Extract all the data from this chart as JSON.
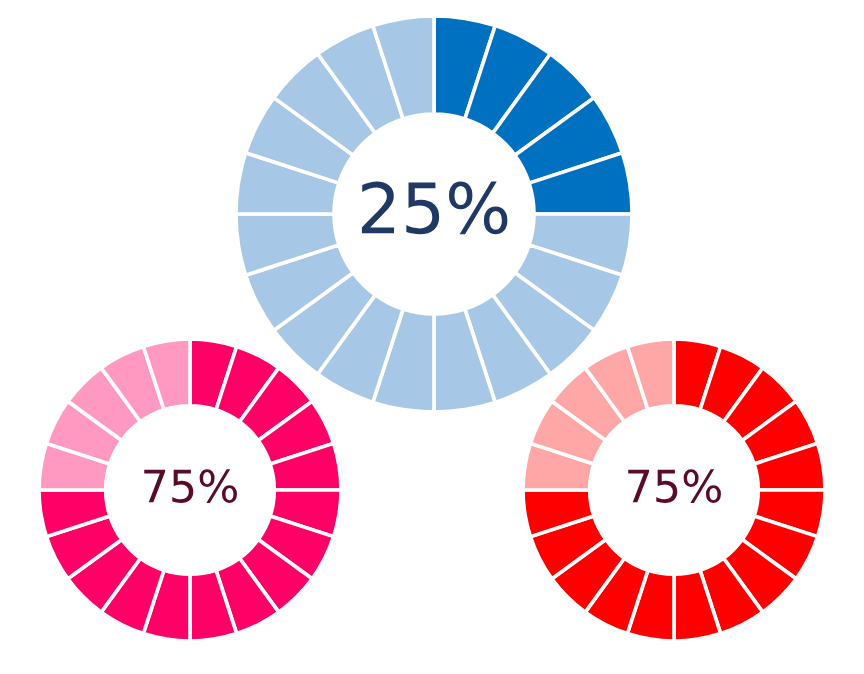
{
  "chart_data": [
    {
      "type": "donut",
      "categories": [
        null,
        null,
        null,
        null,
        null,
        null,
        null,
        null,
        null,
        null,
        null,
        null,
        null,
        null,
        null,
        null,
        null,
        null,
        null,
        null
      ],
      "values": [
        5,
        5,
        5,
        5,
        5,
        5,
        5,
        5,
        5,
        5,
        5,
        5,
        5,
        5,
        5,
        5,
        5,
        5,
        5,
        5
      ],
      "colors": [
        "#0070c0",
        "#0070c0",
        "#0070c0",
        "#0070c0",
        "#0070c0",
        "#a6c8e6",
        "#a6c8e6",
        "#a6c8e6",
        "#a6c8e6",
        "#a6c8e6",
        "#a6c8e6",
        "#a6c8e6",
        "#a6c8e6",
        "#a6c8e6",
        "#a6c8e6",
        "#a6c8e6",
        "#a6c8e6",
        "#a6c8e6",
        "#a6c8e6",
        "#a6c8e6"
      ],
      "annotations": [
        "25%"
      ]
    },
    {
      "type": "donut",
      "categories": [
        null,
        null,
        null,
        null,
        null,
        null,
        null,
        null,
        null,
        null,
        null,
        null,
        null,
        null,
        null,
        null,
        null,
        null,
        null,
        null
      ],
      "values": [
        5,
        5,
        5,
        5,
        5,
        5,
        5,
        5,
        5,
        5,
        5,
        5,
        5,
        5,
        5,
        5,
        5,
        5,
        5,
        5
      ],
      "colors": [
        "#ff0066",
        "#ff0066",
        "#ff0066",
        "#ff0066",
        "#ff0066",
        "#ff0066",
        "#ff0066",
        "#ff0066",
        "#ff0066",
        "#ff0066",
        "#ff0066",
        "#ff0066",
        "#ff0066",
        "#ff0066",
        "#ff0066",
        "#ff99c2",
        "#ff99c2",
        "#ff99c2",
        "#ff99c2",
        "#ff99c2"
      ],
      "annotations": [
        "75%"
      ]
    },
    {
      "type": "donut",
      "categories": [
        null,
        null,
        null,
        null,
        null,
        null,
        null,
        null,
        null,
        null,
        null,
        null,
        null,
        null,
        null,
        null,
        null,
        null,
        null,
        null
      ],
      "values": [
        5,
        5,
        5,
        5,
        5,
        5,
        5,
        5,
        5,
        5,
        5,
        5,
        5,
        5,
        5,
        5,
        5,
        5,
        5,
        5
      ],
      "colors": [
        "#ff0000",
        "#ff0000",
        "#ff0000",
        "#ff0000",
        "#ff0000",
        "#ff0000",
        "#ff0000",
        "#ff0000",
        "#ff0000",
        "#ff0000",
        "#ff0000",
        "#ff0000",
        "#ff0000",
        "#ff0000",
        "#ff0000",
        "#ffa6a6",
        "#ffa6a6",
        "#ffa6a6",
        "#ffa6a6",
        "#ffa6a6"
      ],
      "annotations": [
        "75%"
      ]
    }
  ]
}
